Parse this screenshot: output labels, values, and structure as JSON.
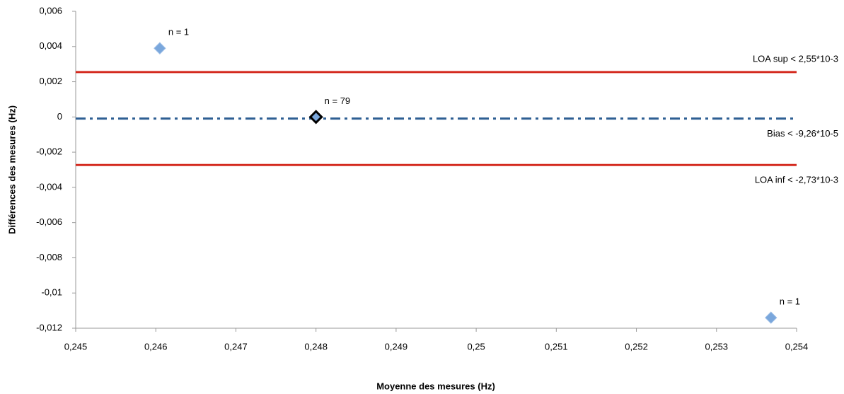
{
  "chart_data": {
    "type": "scatter",
    "x_label": "Moyenne des mesures (Hz)",
    "y_label": "Différences des mesures (Hz)",
    "x": [
      0.24605,
      0.248,
      0.25368
    ],
    "values": [
      0.0039,
      0.0,
      -0.0114
    ],
    "point_labels": [
      "n = 1",
      "n = 79",
      "n = 1"
    ],
    "color": "#7aa7dc",
    "xlim": [
      0.245,
      0.254
    ],
    "xticks": [
      {
        "value": 0.245,
        "label": "0,245"
      },
      {
        "value": 0.246,
        "label": "0,246"
      },
      {
        "value": 0.247,
        "label": "0,247"
      },
      {
        "value": 0.248,
        "label": "0,248"
      },
      {
        "value": 0.249,
        "label": "0,249"
      },
      {
        "value": 0.25,
        "label": "0,25"
      },
      {
        "value": 0.251,
        "label": "0,251"
      },
      {
        "value": 0.252,
        "label": "0,252"
      },
      {
        "value": 0.253,
        "label": "0,253"
      },
      {
        "value": 0.254,
        "label": "0,254"
      }
    ],
    "ylim": [
      -0.012,
      0.006
    ],
    "yticks": [
      {
        "value": -0.012,
        "label": "-0,012"
      },
      {
        "value": -0.01,
        "label": "-0,01"
      },
      {
        "value": -0.008,
        "label": "-0,008"
      },
      {
        "value": -0.006,
        "label": "-0,006"
      },
      {
        "value": -0.004,
        "label": "-0,004"
      },
      {
        "value": -0.002,
        "label": "-0,002"
      },
      0,
      {
        "value": 0.002,
        "label": "0,002"
      },
      {
        "value": 0.004,
        "label": "0,004"
      },
      {
        "value": 0.006,
        "label": "0,006"
      }
    ],
    "grid": false,
    "reference_lines": [
      {
        "name": "LOA sup < 2,55*10-3",
        "value": 0.00255,
        "color": "#d42a1f",
        "style": "solid",
        "label_side": "above"
      },
      {
        "name": "Bias < -9,26*10-5",
        "value": -9.26e-05,
        "color": "#2e5f93",
        "style": "dashdot",
        "label_side": "below"
      },
      {
        "name": "LOA inf < -2,73*10-3",
        "value": -0.00273,
        "color": "#d42a1f",
        "style": "solid",
        "label_side": "below"
      }
    ]
  }
}
